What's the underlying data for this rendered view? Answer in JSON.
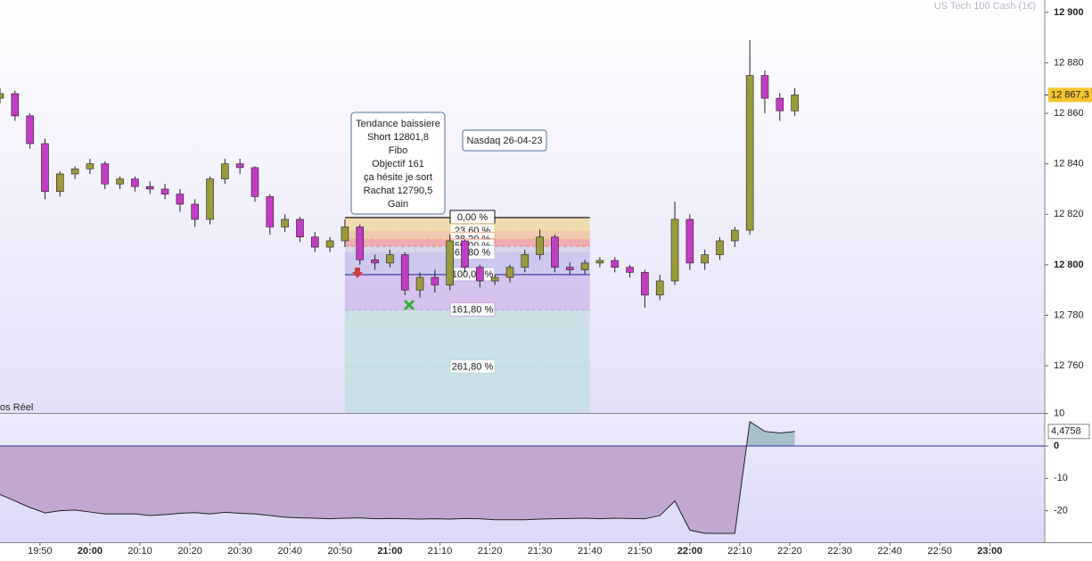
{
  "chart_data": {
    "type": "candlestick",
    "title": "US Tech 100 Cash (1€)",
    "x": [
      "19:42",
      "19:45",
      "19:48",
      "19:51",
      "19:54",
      "19:57",
      "20:00",
      "20:03",
      "20:06",
      "20:09",
      "20:12",
      "20:15",
      "20:18",
      "20:21",
      "20:24",
      "20:27",
      "20:30",
      "20:33",
      "20:36",
      "20:39",
      "20:42",
      "20:45",
      "20:48",
      "20:51",
      "20:54",
      "20:57",
      "21:00",
      "21:03",
      "21:06",
      "21:09",
      "21:12",
      "21:15",
      "21:18",
      "21:21",
      "21:24",
      "21:27",
      "21:30",
      "21:33",
      "21:36",
      "21:39",
      "21:42",
      "21:45",
      "21:48",
      "21:51",
      "21:54",
      "21:57",
      "22:00",
      "22:03",
      "22:06",
      "22:09",
      "22:12",
      "22:15",
      "22:18",
      "22:21"
    ],
    "open": [
      12866,
      12867.8,
      12859,
      12848,
      12829,
      12836,
      12838,
      12840,
      12832,
      12834,
      12831,
      12830,
      12828,
      12824,
      12818,
      12834,
      12840,
      12838.5,
      12827,
      12815,
      12818,
      12811,
      12807,
      12809.5,
      12815,
      12802,
      12800.7,
      12804,
      12790,
      12795,
      12792,
      12809.5,
      12799,
      12793.6,
      12795,
      12799,
      12804,
      12811,
      12799,
      12798,
      12800.7,
      12801.7,
      12799,
      12797,
      12788,
      12793.6,
      12818,
      12800.7,
      12804,
      12809.5,
      12813.7,
      12875,
      12866,
      12861
    ],
    "high": [
      12870,
      12869,
      12860,
      12850,
      12837,
      12839,
      12842,
      12841,
      12835,
      12835,
      12833,
      12832,
      12830,
      12826,
      12835,
      12842,
      12842,
      12839,
      12828,
      12820,
      12819,
      12813,
      12811,
      12818,
      12816,
      12804,
      12806,
      12805,
      12797,
      12798,
      12812,
      12810,
      12800,
      12796,
      12800,
      12806,
      12814,
      12812,
      12801,
      12802,
      12803,
      12803,
      12800,
      12798,
      12796,
      12825,
      12820,
      12806,
      12811,
      12815,
      12889,
      12877,
      12868,
      12870
    ],
    "low": [
      12864,
      12857,
      12846,
      12826,
      12827,
      12834,
      12836,
      12830,
      12830,
      12829,
      12828,
      12826,
      12821,
      12815,
      12816,
      12832,
      12836,
      12825,
      12812,
      12813,
      12809,
      12805,
      12805,
      12807,
      12800,
      12798,
      12799,
      12788,
      12787,
      12789,
      12790,
      12797,
      12791,
      12792,
      12793,
      12797,
      12802,
      12797,
      12796,
      12796,
      12799,
      12797,
      12795,
      12783,
      12786,
      12792,
      12798,
      12798,
      12802,
      12807,
      12812,
      12860,
      12857,
      12859
    ],
    "close": [
      12867.8,
      12859,
      12848,
      12829,
      12836,
      12838,
      12840,
      12832,
      12834,
      12831,
      12830,
      12828,
      12824,
      12818,
      12834,
      12840,
      12838.5,
      12827,
      12815,
      12818,
      12811,
      12807,
      12809.5,
      12815,
      12802,
      12800.7,
      12804,
      12790,
      12795,
      12792,
      12809.5,
      12799,
      12793.6,
      12795,
      12799,
      12804,
      12811,
      12799,
      12798,
      12800.7,
      12801.7,
      12799,
      12797,
      12788,
      12793.6,
      12818,
      12800.7,
      12804,
      12809.5,
      12813.7,
      12875,
      12866,
      12861,
      12867.3
    ],
    "up_color": "#9a9a3c",
    "down_color": "#c43cc4",
    "xlim": [
      "19:42",
      "23:11"
    ],
    "xticks": [
      "19:50",
      "20:00",
      "20:10",
      "20:20",
      "20:30",
      "20:40",
      "20:50",
      "21:00",
      "21:10",
      "21:20",
      "21:30",
      "21:40",
      "21:50",
      "22:00",
      "22:10",
      "22:20",
      "22:30",
      "22:40",
      "22:50",
      "23:00"
    ],
    "ylim": [
      12741.3,
      12904.9
    ],
    "yticks": [
      {
        "value": 12900,
        "label": "12 900"
      },
      {
        "value": 12880,
        "label": "12 880"
      },
      {
        "value": 12860,
        "label": "12 860"
      },
      {
        "value": 12840,
        "label": "12 840"
      },
      {
        "value": 12820,
        "label": "12 820"
      },
      {
        "value": 12800,
        "label": "12 800"
      },
      {
        "value": 12780,
        "label": "12 780"
      },
      {
        "value": 12760,
        "label": "12 760"
      }
    ],
    "last_price": {
      "value": 12867.3,
      "label": "12 867,3"
    },
    "note": [
      "Tendance baissiere",
      "Short 12801,8",
      "Fibo",
      "Objectif 161",
      "ça hésite je sort",
      "Rachat 12790,5",
      "Gain"
    ],
    "label": "Nasdaq 26-04-23",
    "fibo": {
      "start": "20:51",
      "end": "21:40",
      "p0": 12818.7,
      "p100": 12796.1,
      "levels": [
        {
          "value": 0,
          "label": "0,00 %",
          "color": "#f0e8a0"
        },
        {
          "value": 23.6,
          "label": "23,60 %",
          "color": "#f0d080"
        },
        {
          "value": 38.2,
          "label": "38,20 %",
          "color": "#f0b080"
        },
        {
          "value": 50,
          "label": "50,00 %",
          "color": "#f08080"
        },
        {
          "value": 61.8,
          "label": "61,80 %",
          "color": "#c8c8e0"
        },
        {
          "value": 100,
          "label": "100,00 %",
          "color": "#b8b0e8"
        },
        {
          "value": 161.8,
          "label": "161,80 %",
          "color": "#c8a8e8"
        },
        {
          "value": 261.8,
          "label": "261,80 %",
          "color": "#b8dcd8"
        }
      ]
    },
    "indicator": {
      "name": "os Réel",
      "values": [
        -15,
        -17,
        -19,
        -20.7,
        -20,
        -19.8,
        -20.4,
        -21,
        -21,
        -21,
        -21.5,
        -21.2,
        -20.8,
        -20.6,
        -21,
        -20.5,
        -20.8,
        -21,
        -21.5,
        -22,
        -22.2,
        -22.3,
        -22.5,
        -22.3,
        -22.2,
        -22.5,
        -22.4,
        -22.5,
        -22.6,
        -22.5,
        -22.6,
        -22.4,
        -22.5,
        -22.8,
        -22.8,
        -22.8,
        -22.6,
        -22.5,
        -22.4,
        -22.3,
        -22.5,
        -22.3,
        -22.4,
        -22.5,
        -21.5,
        -17,
        -26,
        -27,
        -27,
        -27,
        7.5,
        4.5,
        4,
        4.4758
      ],
      "ylim": [
        -29.75,
        10.2
      ],
      "yticks": [
        10,
        0,
        -10,
        -20
      ],
      "last": {
        "value": 4.4758,
        "label": "4,4758"
      }
    }
  }
}
